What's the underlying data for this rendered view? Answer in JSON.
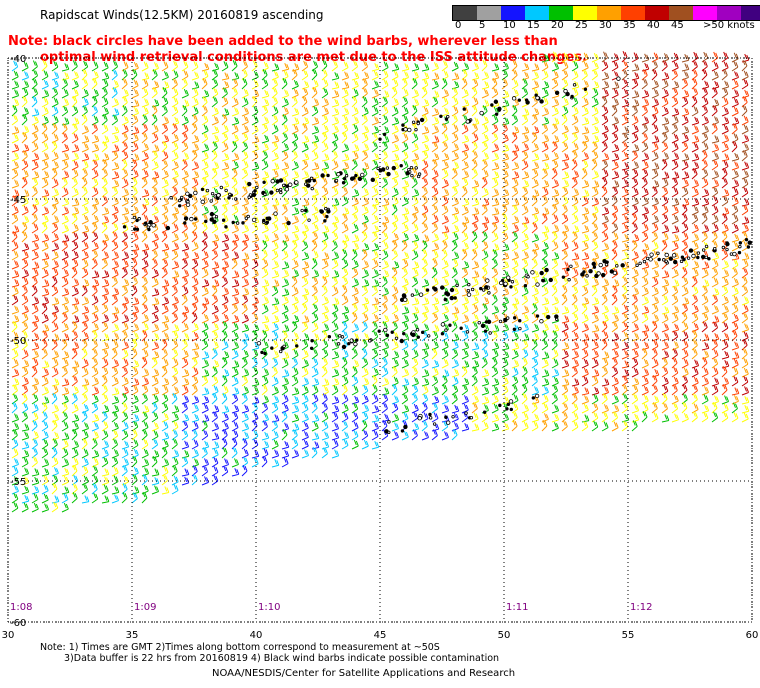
{
  "title": "Rapidscat Winds(12.5KM) 20160819 ascending",
  "note_line1": "Note: black circles have been added to the wind barbs, wherever less than",
  "note_line2": "optimal wind retrieval conditions are met due to the ISS attitude changes.",
  "colorbar": {
    "labels": [
      "0",
      "5",
      "10",
      "15",
      "20",
      "25",
      "30",
      "35",
      "40",
      "45",
      ">50 knots"
    ],
    "colors": [
      "#404040",
      "#a0a0a0",
      "#1414ff",
      "#00c8ff",
      "#00c000",
      "#ffff00",
      "#ffa000",
      "#ff4000",
      "#c00000",
      "#a05020",
      "#ff00ff",
      "#a000c0",
      "#400080"
    ]
  },
  "axes": {
    "x_ticks": [
      "30",
      "35",
      "40",
      "45",
      "50",
      "55",
      "60"
    ],
    "y_ticks": [
      "-45",
      "-50",
      "-55",
      "-60"
    ],
    "y_top_label": "-40",
    "lon_range": [
      30,
      60
    ],
    "lat_range": [
      -40,
      -60
    ]
  },
  "times": [
    "1:08",
    "1:09",
    "1:10",
    "1:11",
    "1:12"
  ],
  "footnote_line1": "Note: 1) Times are GMT 2)Times along bottom correspond to measurement at ~50S",
  "footnote_line2": "3)Data buffer is 22 hrs from 20160819 4) Black wind barbs indicate possible contamination",
  "credit": "NOAA/NESDIS/Center for Satellite Applications and Research",
  "colors": {
    "time_label": "#800080",
    "note": "#ff0000",
    "grid": "#000000"
  }
}
